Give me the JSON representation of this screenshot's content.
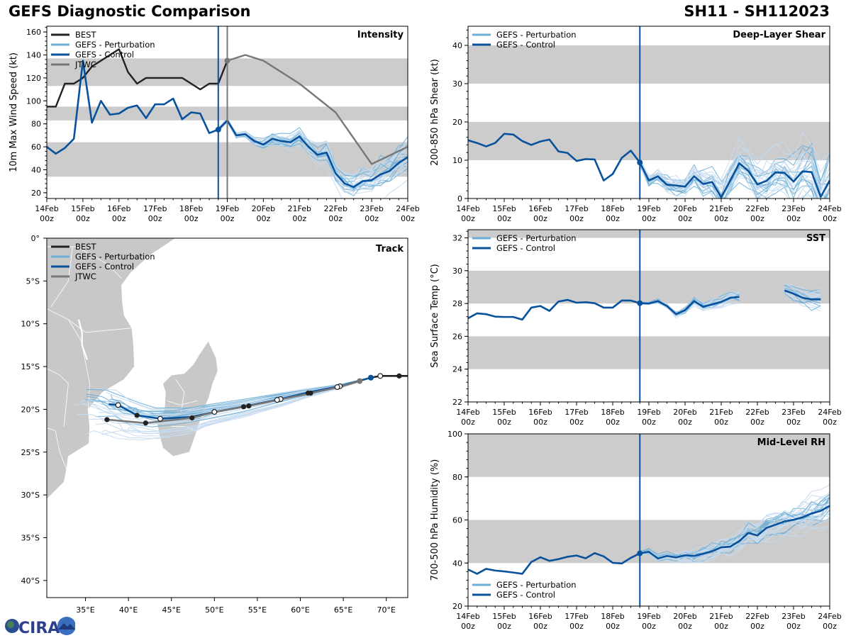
{
  "header": {
    "title": "GEFS Diagnostic Comparison",
    "storm_id": "SH11 - SH112023"
  },
  "colors": {
    "best": "#222222",
    "perturbation": "#6baed6",
    "perturbation_light": "#c6dbef",
    "control": "#08519c",
    "jtwc": "#777777",
    "band": "#cccccc",
    "land": "#c8c8c8"
  },
  "legend_labels": {
    "best": "BEST",
    "perturbation": "GEFS - Perturbation",
    "control": "GEFS - Control",
    "jtwc": "JTWC"
  },
  "time_axis": {
    "tick_labels": [
      [
        "14Feb",
        "00z"
      ],
      [
        "15Feb",
        "00z"
      ],
      [
        "16Feb",
        "00z"
      ],
      [
        "17Feb",
        "00z"
      ],
      [
        "18Feb",
        "00z"
      ],
      [
        "19Feb",
        "00z"
      ],
      [
        "20Feb",
        "00z"
      ],
      [
        "21Feb",
        "00z"
      ],
      [
        "22Feb",
        "00z"
      ],
      [
        "23Feb",
        "00z"
      ],
      [
        "24Feb",
        "00z"
      ]
    ],
    "range_days": [
      0,
      10
    ],
    "init_time_day": 4.75
  },
  "chart_data": [
    {
      "id": "intensity",
      "type": "line",
      "title": "Intensity",
      "xlabel": "",
      "ylabel": "10m Max Wind Speed (kt)",
      "ylim": [
        15,
        165
      ],
      "yticks": [
        20,
        40,
        60,
        80,
        100,
        120,
        140,
        160
      ],
      "bands": [
        [
          34,
          64
        ],
        [
          83,
          95
        ],
        [
          113,
          137
        ]
      ],
      "legend": "top-left",
      "vlines": [
        {
          "day": 4.75,
          "series": "control"
        },
        {
          "day": 5.0,
          "series": "jtwc"
        }
      ],
      "x_step_days": 0.25,
      "series": [
        {
          "name": "BEST",
          "color_key": "best",
          "x_start": 0,
          "values": [
            95,
            95,
            115,
            115,
            120,
            130,
            135,
            140,
            145,
            125,
            115,
            120,
            120,
            120,
            120,
            120,
            115,
            110,
            115,
            115,
            135
          ]
        },
        {
          "name": "GEFS - Control",
          "color_key": "control",
          "x_start": 0,
          "values": [
            60,
            54,
            59,
            67,
            135,
            81,
            100,
            88,
            89,
            94,
            96,
            85,
            97,
            97,
            102,
            84,
            90,
            89,
            72,
            75,
            83,
            70,
            71,
            65,
            62,
            67,
            65,
            64,
            69,
            60,
            53,
            55,
            37,
            28,
            25,
            30,
            31,
            36,
            39,
            46,
            51
          ]
        },
        {
          "name": "JTWC",
          "color_key": "jtwc",
          "x_points": [
            5.0,
            5.5,
            6.0,
            7.0,
            8.0,
            9.0,
            10.0
          ],
          "values": [
            135,
            140,
            135,
            115,
            90,
            45,
            60
          ]
        }
      ],
      "perturbation_spread": {
        "x_start": 4.75,
        "center_offset": 0,
        "count": 30,
        "spread": 8
      }
    },
    {
      "id": "shear",
      "type": "line",
      "title": "Deep-Layer Shear",
      "xlabel": "",
      "ylabel": "200-850 hPa Shear (kt)",
      "ylim": [
        0,
        45
      ],
      "yticks": [
        0,
        10,
        20,
        30,
        40
      ],
      "bands": [
        [
          10,
          20
        ],
        [
          30,
          40
        ]
      ],
      "legend": "top-left",
      "vlines": [
        {
          "day": 4.75,
          "series": "control"
        }
      ],
      "x_step_days": 0.25,
      "series": [
        {
          "name": "GEFS - Control",
          "color_key": "control",
          "x_start": 0,
          "values": [
            15.2,
            14.5,
            13.6,
            14.5,
            16.9,
            16.7,
            15.0,
            14.0,
            14.9,
            15.4,
            12.3,
            11.9,
            9.8,
            10.3,
            10.2,
            4.7,
            6.4,
            10.6,
            12.5,
            9.4,
            4.7,
            5.8,
            3.6,
            3.4,
            3.1,
            5.8,
            3.8,
            4.3,
            0.3,
            4.7,
            9.2,
            7.2,
            3.7,
            4.6,
            6.8,
            6.7,
            4.4,
            7.1,
            6.9,
            0.4,
            4.7
          ]
        }
      ],
      "perturbation_spread": {
        "x_start": 4.75,
        "count": 30,
        "spread": 5
      }
    },
    {
      "id": "sst",
      "type": "line",
      "title": "SST",
      "xlabel": "",
      "ylabel": "Sea Surface Temp (°C)",
      "ylim": [
        22,
        32.5
      ],
      "yticks": [
        22,
        24,
        26,
        28,
        30,
        32
      ],
      "bands": [
        [
          24,
          26
        ],
        [
          28,
          30
        ],
        [
          32,
          34
        ]
      ],
      "legend": "top-left",
      "vlines": [
        {
          "day": 4.75,
          "series": "control"
        }
      ],
      "x_step_days": 0.25,
      "series": [
        {
          "name": "GEFS - Control",
          "color_key": "control",
          "x_start": 0,
          "values": [
            27.1,
            27.4,
            27.35,
            27.2,
            27.18,
            27.18,
            27.02,
            27.75,
            27.85,
            27.55,
            28.12,
            28.22,
            28.05,
            28.08,
            28.02,
            27.75,
            27.75,
            28.18,
            28.18,
            28.02,
            28.0,
            28.15,
            27.85,
            27.35,
            27.6,
            28.15,
            27.8,
            27.95,
            28.1,
            28.35,
            28.4,
            null,
            null,
            null,
            null,
            28.8,
            28.6,
            28.35,
            28.25,
            28.25
          ]
        }
      ],
      "perturbation_spread": {
        "x_start": 4.75,
        "count": 25,
        "spread": 0.35
      }
    },
    {
      "id": "rh",
      "type": "line",
      "title": "Mid-Level RH",
      "xlabel": "",
      "ylabel": "700-500 hPa Humidity (%)",
      "ylim": [
        20,
        100
      ],
      "yticks": [
        20,
        40,
        60,
        80,
        100
      ],
      "bands": [
        [
          40,
          60
        ],
        [
          80,
          100
        ]
      ],
      "legend": "bottom-left",
      "vlines": [
        {
          "day": 4.75,
          "series": "control"
        }
      ],
      "x_step_days": 0.25,
      "series": [
        {
          "name": "GEFS - Control",
          "color_key": "control",
          "x_start": 0,
          "values": [
            37,
            35,
            37.3,
            36.5,
            36.1,
            35.6,
            35,
            40.5,
            42.7,
            41,
            41.8,
            42.9,
            43.5,
            42.2,
            44.6,
            43.1,
            40.1,
            39.8,
            42.4,
            44.5,
            45.2,
            42.1,
            43.3,
            42.6,
            43.6,
            43.3,
            44.3,
            45.5,
            47.3,
            47.6,
            50.2,
            54,
            52.8,
            56.3,
            57.8,
            59.3,
            60.1,
            61.2,
            63,
            64.2,
            66.6
          ]
        }
      ],
      "perturbation_spread": {
        "x_start": 4.75,
        "count": 30,
        "spread": 5
      }
    },
    {
      "id": "track",
      "type": "scatter",
      "title": "Track",
      "xlabel": "",
      "ylabel": "",
      "xlim": [
        30.5,
        72.5
      ],
      "ylim": [
        -42,
        0
      ],
      "xticks": [
        35,
        40,
        45,
        50,
        55,
        60,
        65,
        70
      ],
      "xtick_labels": [
        "35°E",
        "40°E",
        "45°E",
        "50°E",
        "55°E",
        "60°E",
        "65°E",
        "70°E"
      ],
      "yticks": [
        0,
        -5,
        -10,
        -15,
        -20,
        -25,
        -30,
        -35,
        -40
      ],
      "ytick_labels": [
        "0°",
        "5°S",
        "10°S",
        "15°S",
        "20°S",
        "25°S",
        "30°S",
        "35°S",
        "40°S"
      ],
      "legend": "top-left",
      "series": [
        {
          "name": "BEST",
          "color_key": "best",
          "lon": [
            72.5,
            71.5,
            69.3,
            68.2
          ],
          "lat": [
            -16.1,
            -16.1,
            -16.1,
            -16.3
          ]
        },
        {
          "name": "GEFS - Control",
          "color_key": "control",
          "lon": [
            68.2,
            64.6,
            61.0,
            57.7,
            53.8,
            50.0,
            47.3,
            43.7,
            41.0,
            38.8,
            37.7
          ],
          "lat": [
            -16.3,
            -17.3,
            -18.0,
            -18.8,
            -19.6,
            -20.3,
            -20.9,
            -21.1,
            -20.7,
            -19.5,
            -19.4
          ]
        },
        {
          "name": "JTWC",
          "color_key": "jtwc",
          "lon": [
            66.9,
            64.5,
            61.2,
            57.5,
            54.0,
            50.1,
            47.4,
            42.0,
            37.5
          ],
          "lat": [
            -16.7,
            -17.4,
            -18.1,
            -18.9,
            -19.6,
            -20.3,
            -21.0,
            -21.6,
            -21.2
          ]
        }
      ],
      "markers": {
        "filled": [
          [
            71.5,
            -16.1
          ],
          [
            61.2,
            -18.1
          ],
          [
            54.0,
            -19.6
          ],
          [
            47.4,
            -21.0
          ],
          [
            42.0,
            -21.6
          ],
          [
            37.5,
            -21.2
          ],
          [
            41.0,
            -20.7
          ],
          [
            60.9,
            -18.1
          ],
          [
            53.4,
            -19.7
          ]
        ],
        "open": [
          [
            69.3,
            -16.1
          ],
          [
            64.6,
            -17.3
          ],
          [
            57.7,
            -18.8
          ],
          [
            50.0,
            -20.3
          ],
          [
            43.7,
            -21.1
          ],
          [
            38.8,
            -19.5
          ],
          [
            64.3,
            -17.4
          ],
          [
            57.3,
            -18.9
          ]
        ]
      }
    }
  ],
  "logo": {
    "text": "CIRA"
  }
}
